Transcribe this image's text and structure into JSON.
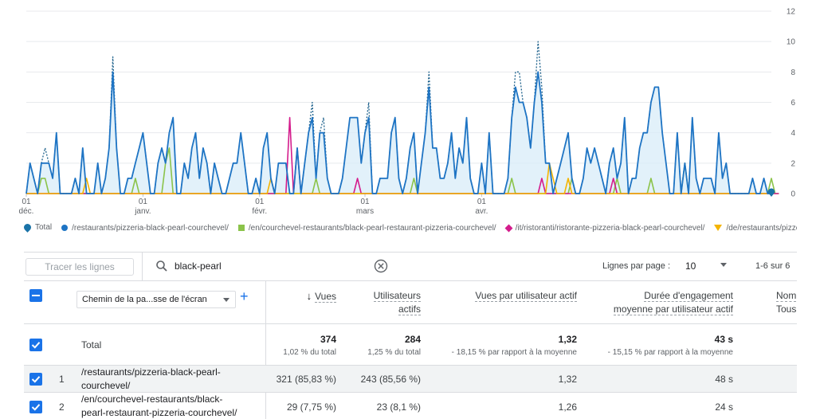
{
  "chart_data": {
    "type": "line",
    "y_ticks": [
      "12",
      "10",
      "8",
      "6",
      "4",
      "2",
      "0"
    ],
    "ylim": [
      0,
      12
    ],
    "x_ticks": [
      {
        "day": "01",
        "month": "déc."
      },
      {
        "day": "01",
        "month": "janv."
      },
      {
        "day": "01",
        "month": "févr."
      },
      {
        "day": "01",
        "month": "mars"
      },
      {
        "day": "01",
        "month": "avr."
      }
    ],
    "total_dotted": [
      0,
      2,
      1,
      0,
      2,
      3,
      2,
      1,
      4,
      0,
      0,
      0,
      0,
      1,
      0,
      3,
      0,
      0,
      0,
      2,
      0,
      1,
      3,
      9,
      3,
      0,
      0,
      1,
      1,
      2,
      3,
      4,
      2,
      0,
      0,
      2,
      3,
      2,
      4,
      5,
      0,
      0,
      2,
      1,
      3,
      4,
      1,
      3,
      2,
      0,
      2,
      1,
      0,
      0,
      1,
      2,
      2,
      4,
      2,
      0,
      0,
      1,
      0,
      3,
      4,
      1,
      0,
      2,
      2,
      2,
      0,
      0,
      3,
      0,
      2,
      4,
      6,
      1,
      4,
      5,
      1,
      0,
      0,
      0,
      1,
      3,
      5,
      5,
      5,
      2,
      4,
      6,
      0,
      0,
      1,
      1,
      1,
      4,
      5,
      1,
      0,
      1,
      3,
      4,
      0,
      2,
      4,
      8,
      3,
      3,
      1,
      1,
      2,
      4,
      1,
      3,
      2,
      5,
      1,
      0,
      0,
      2,
      0,
      4,
      0,
      0,
      0,
      0,
      1,
      5,
      8,
      8,
      6,
      5,
      3,
      6,
      10,
      7,
      2,
      2,
      0,
      1,
      2,
      3,
      4,
      1,
      0,
      0,
      1,
      3,
      2,
      3,
      2,
      1,
      0,
      2,
      3,
      1,
      2,
      5,
      0,
      1,
      1,
      3,
      4,
      4,
      6,
      7,
      7,
      4,
      2,
      0,
      0,
      4,
      0,
      2,
      0,
      5,
      1,
      0,
      1,
      1,
      1,
      0,
      4,
      1,
      2,
      0,
      0,
      0,
      0,
      0,
      0,
      1,
      0,
      0,
      1,
      0,
      0
    ],
    "total_solid": [
      0,
      2,
      1,
      0,
      2,
      2,
      2,
      1,
      4,
      0,
      0,
      0,
      0,
      1,
      0,
      3,
      0,
      0,
      0,
      2,
      0,
      1,
      3,
      8,
      3,
      0,
      0,
      1,
      1,
      2,
      3,
      4,
      2,
      0,
      0,
      2,
      3,
      2,
      4,
      5,
      0,
      0,
      2,
      1,
      3,
      4,
      1,
      3,
      2,
      0,
      2,
      1,
      0,
      0,
      1,
      2,
      2,
      4,
      2,
      0,
      0,
      1,
      0,
      3,
      4,
      1,
      0,
      2,
      2,
      2,
      0,
      0,
      3,
      0,
      2,
      4,
      5,
      1,
      4,
      4,
      1,
      0,
      0,
      0,
      1,
      3,
      5,
      5,
      5,
      2,
      4,
      5,
      0,
      0,
      1,
      1,
      1,
      4,
      5,
      1,
      0,
      1,
      3,
      4,
      0,
      2,
      4,
      7,
      3,
      3,
      1,
      1,
      2,
      4,
      1,
      3,
      2,
      5,
      1,
      0,
      0,
      2,
      0,
      4,
      0,
      0,
      0,
      0,
      1,
      5,
      7,
      6,
      6,
      5,
      3,
      6,
      8,
      6,
      2,
      2,
      0,
      1,
      2,
      3,
      4,
      1,
      0,
      0,
      1,
      3,
      2,
      3,
      2,
      1,
      0,
      2,
      3,
      1,
      2,
      5,
      0,
      1,
      1,
      3,
      4,
      4,
      6,
      7,
      7,
      4,
      2,
      0,
      0,
      4,
      0,
      2,
      0,
      5,
      1,
      0,
      1,
      1,
      1,
      0,
      4,
      1,
      2,
      0,
      0,
      0,
      0,
      0,
      0,
      1,
      0,
      0,
      1,
      0,
      0
    ],
    "green": [
      0,
      0,
      0,
      0,
      1,
      1,
      0,
      0,
      0,
      0,
      0,
      0,
      0,
      0,
      0,
      0,
      0,
      0,
      0,
      0,
      0,
      0,
      0,
      0,
      0,
      0,
      0,
      0,
      0,
      1,
      0,
      0,
      0,
      0,
      0,
      0,
      0,
      2,
      3,
      0,
      0,
      0,
      0,
      0,
      0,
      0,
      0,
      0,
      0,
      0,
      0,
      0,
      0,
      0,
      0,
      0,
      0,
      0,
      0,
      0,
      0,
      0,
      0,
      0,
      0,
      0,
      0,
      0,
      0,
      0,
      0,
      0,
      0,
      0,
      0,
      0,
      0,
      1,
      0,
      0,
      0,
      0,
      0,
      0,
      0,
      0,
      0,
      0,
      0,
      0,
      0,
      0,
      0,
      0,
      0,
      0,
      0,
      0,
      0,
      0,
      0,
      0,
      0,
      1,
      0,
      0,
      0,
      0,
      0,
      0,
      0,
      0,
      0,
      0,
      0,
      0,
      0,
      0,
      0,
      0,
      0,
      0,
      0,
      0,
      0,
      0,
      0,
      0,
      0,
      1,
      0,
      0,
      0,
      0,
      0,
      0,
      0,
      0,
      0,
      0,
      0,
      0,
      0,
      0,
      0,
      1,
      0,
      0,
      0,
      0,
      0,
      0,
      0,
      0,
      0,
      0,
      0,
      1,
      0,
      0,
      0,
      0,
      0,
      0,
      0,
      0,
      1,
      0,
      0,
      0,
      0,
      0,
      0,
      0,
      0,
      2,
      0,
      0,
      0,
      0,
      0,
      0,
      0,
      0,
      0,
      0,
      0,
      0,
      0,
      0,
      0,
      0,
      0,
      0,
      0,
      0,
      0,
      0,
      1,
      0,
      0
    ],
    "pink": [
      0,
      0,
      0,
      0,
      0,
      0,
      0,
      0,
      0,
      0,
      0,
      0,
      0,
      0,
      0,
      0,
      0,
      0,
      0,
      0,
      0,
      0,
      0,
      0,
      0,
      0,
      0,
      0,
      0,
      0,
      0,
      0,
      0,
      0,
      0,
      0,
      0,
      0,
      0,
      0,
      0,
      0,
      0,
      0,
      0,
      0,
      0,
      0,
      0,
      0,
      0,
      0,
      0,
      0,
      0,
      0,
      0,
      0,
      0,
      0,
      0,
      0,
      0,
      0,
      0,
      0,
      0,
      0,
      0,
      0,
      5,
      0,
      3,
      0,
      0,
      0,
      0,
      0,
      0,
      0,
      0,
      0,
      0,
      0,
      0,
      0,
      0,
      0,
      1,
      0,
      0,
      0,
      0,
      0,
      0,
      0,
      0,
      0,
      0,
      0,
      0,
      0,
      0,
      0,
      0,
      0,
      0,
      0,
      0,
      0,
      0,
      0,
      0,
      0,
      0,
      0,
      0,
      0,
      0,
      0,
      0,
      0,
      0,
      0,
      0,
      0,
      0,
      0,
      0,
      0,
      0,
      0,
      0,
      0,
      0,
      0,
      0,
      1,
      0,
      0,
      0,
      0,
      0,
      0,
      0,
      0,
      0,
      0,
      0,
      0,
      0,
      0,
      0,
      0,
      0,
      0,
      1,
      0,
      0,
      0,
      0,
      0,
      0,
      0,
      0,
      0,
      0,
      0,
      0,
      0,
      0,
      0,
      0,
      0,
      0,
      0,
      0,
      0,
      0,
      0,
      0,
      0,
      0,
      0,
      0,
      0,
      0,
      0,
      0,
      0,
      0,
      0,
      0,
      0,
      0,
      0,
      0,
      0,
      0,
      0,
      0
    ],
    "yellow": [
      0,
      0,
      0,
      0,
      0,
      0,
      0,
      0,
      0,
      0,
      0,
      0,
      0,
      0,
      0,
      0,
      1,
      0,
      0,
      0,
      0,
      0,
      0,
      0,
      0,
      0,
      0,
      0,
      0,
      0,
      0,
      0,
      0,
      0,
      0,
      0,
      0,
      0,
      0,
      0,
      0,
      0,
      0,
      0,
      0,
      0,
      0,
      0,
      0,
      0,
      0,
      0,
      0,
      0,
      0,
      0,
      0,
      0,
      0,
      0,
      0,
      0,
      0,
      0,
      0,
      1,
      0,
      0,
      0,
      0,
      0,
      0,
      0,
      0,
      0,
      0,
      0,
      0,
      0,
      0,
      0,
      0,
      0,
      0,
      0,
      0,
      0,
      0,
      0,
      0,
      0,
      0,
      0,
      0,
      0,
      0,
      0,
      0,
      0,
      0,
      0,
      0,
      0,
      0,
      0,
      0,
      0,
      0,
      0,
      0,
      0,
      0,
      0,
      0,
      0,
      0,
      0,
      0,
      0,
      0,
      0,
      0,
      0,
      0,
      0,
      0,
      0,
      0,
      0,
      0,
      0,
      0,
      0,
      0,
      0,
      0,
      0,
      0,
      0,
      2,
      1,
      0,
      0,
      0,
      1,
      0,
      0,
      0,
      0,
      0,
      0,
      0,
      0,
      0,
      0,
      0,
      0,
      0,
      0,
      0,
      0,
      0,
      0,
      0,
      0,
      0,
      0,
      0,
      0,
      0,
      0,
      0,
      0,
      0,
      0,
      0,
      0,
      0,
      0,
      0,
      0,
      0,
      0,
      0,
      0,
      0,
      0,
      0,
      0,
      0,
      0,
      0,
      0,
      0,
      0,
      0,
      0,
      0,
      0
    ]
  },
  "legend": [
    {
      "marker": "drop",
      "label": "Total"
    },
    {
      "marker": "dot",
      "label": "/restaurants/pizzeria-black-pearl-courchevel/"
    },
    {
      "marker": "square",
      "label": "/en/courchevel-restaurants/black-pearl-restaurant-pizzeria-courchevel/"
    },
    {
      "marker": "diamond",
      "label": "/it/ristoranti/ristorante-pizzeria-black-pearl-courchevel/"
    },
    {
      "marker": "triangle",
      "label": "/de/restaurants/pizzeria-black-pearl-courchevel/"
    }
  ],
  "colors": {
    "total": "#1a73a8",
    "series1": "#1e74c4",
    "series2": "#8bc34a",
    "series3": "#d41c8c",
    "series4": "#f4b400",
    "checkbox": "#1a73e8"
  },
  "toolbar": {
    "trace_button": "Tracer les lignes",
    "search_value": "black-pearl",
    "rows_per_page_label": "Lignes par page :",
    "rows_per_page_value": "10",
    "pagination": "1-6 sur 6"
  },
  "table": {
    "dimension_selector": "Chemin de la pa...sse de l'écran",
    "headers": {
      "views": "Vues",
      "users_line1": "Utilisateurs",
      "users_line2": "actifs",
      "views_per_user": "Vues par utilisateur actif",
      "engagement_line1": "Durée d'engagement",
      "engagement_line2": "moyenne par utilisateur actif",
      "partial_line1": "Nom",
      "partial_line2": "Tous"
    },
    "total": {
      "label": "Total",
      "views": "374",
      "views_sub": "1,02 % du total",
      "users": "284",
      "users_sub": "1,25 % du total",
      "vpu": "1,32",
      "vpu_sub": "- 18,15 % par rapport à la moyenne",
      "engagement": "43 s",
      "engagement_sub": "- 15,15 % par rapport à la moyenne"
    },
    "rows": [
      {
        "index": "1",
        "path_line1": "/restaurants/pizzeria-black-pearl-",
        "path_line2": "courchevel/",
        "views": "321 (85,83 %)",
        "users": "243 (85,56 %)",
        "vpu": "1,32",
        "engagement": "48 s"
      },
      {
        "index": "2",
        "path_line1": "/en/courchevel-restaurants/black-",
        "path_line2": "pearl-restaurant-pizzeria-courchevel/",
        "views": "29 (7,75 %)",
        "users": "23 (8,1 %)",
        "vpu": "1,26",
        "engagement": "24 s"
      }
    ]
  }
}
